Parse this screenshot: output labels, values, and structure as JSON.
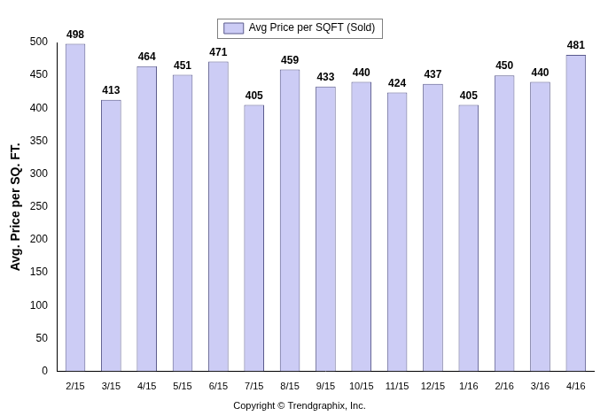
{
  "chart_data": {
    "type": "bar",
    "categories": [
      "2/15",
      "3/15",
      "4/15",
      "5/15",
      "6/15",
      "7/15",
      "8/15",
      "9/15",
      "10/15",
      "11/15",
      "12/15",
      "1/16",
      "2/16",
      "3/16",
      "4/16"
    ],
    "series": [
      {
        "name": "Avg Price per SQFT (Sold)",
        "color": "#ccccf5",
        "values": [
          498,
          413,
          464,
          451,
          471,
          405,
          459,
          433,
          440,
          424,
          437,
          405,
          450,
          440,
          481
        ]
      }
    ],
    "y_label": "Avg. Price per SQ. FT.",
    "annotations": [
      "Copyright © Trendgraphix, Inc."
    ],
    "ylim": [
      0,
      500
    ],
    "yticks": [
      0,
      50,
      100,
      150,
      200,
      250,
      300,
      350,
      400,
      450,
      500
    ],
    "grid": false,
    "legend": "top",
    "data_labels": true
  }
}
